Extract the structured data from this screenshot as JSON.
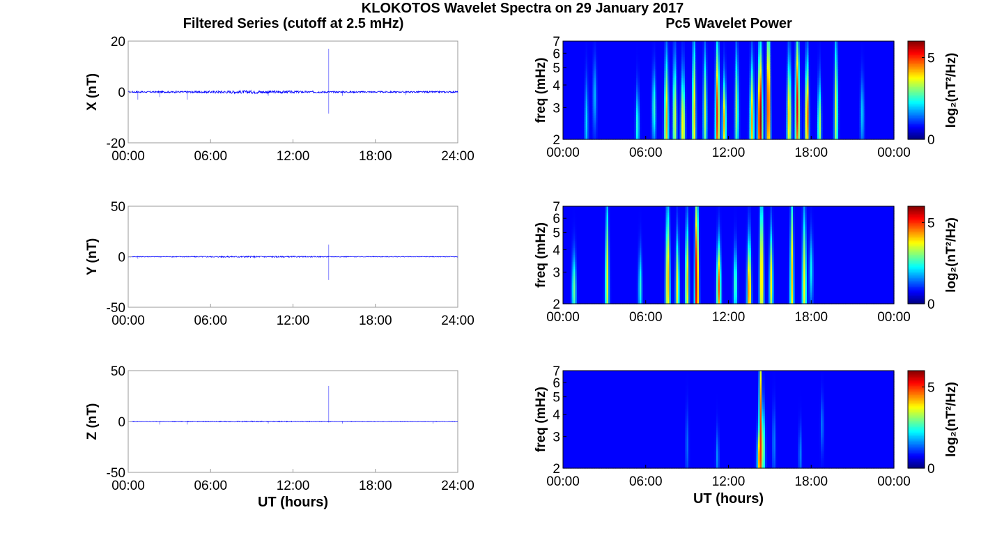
{
  "figure": {
    "title": "KLOKOTOS Wavelet Spectra on 29 January 2017",
    "left_column_title": "Filtered Series (cutoff at 2.5 mHz)",
    "right_column_title": "Pc5 Wavelet Power"
  },
  "chart_data": [
    {
      "type": "line",
      "panel": "X",
      "ylabel": "X (nT)",
      "xlabel": "",
      "ylim": [
        -20,
        20
      ],
      "yticks": [
        "20",
        "0",
        "-20"
      ],
      "xticks": [
        "00:00",
        "06:00",
        "12:00",
        "18:00",
        "24:00"
      ],
      "xlim_hours": [
        0,
        24
      ],
      "line_color": "#0000ff",
      "spikes": [
        {
          "t": 0.7,
          "lo": -3,
          "hi": 0.5
        },
        {
          "t": 2.3,
          "lo": -2,
          "hi": 0.5
        },
        {
          "t": 4.3,
          "lo": -3,
          "hi": 0.5
        },
        {
          "t": 10.2,
          "lo": -1.5,
          "hi": 0.5
        },
        {
          "t": 14.6,
          "lo": -8.5,
          "hi": 17
        },
        {
          "t": 15.6,
          "lo": -1.5,
          "hi": 0.5
        },
        {
          "t": 20.2,
          "lo": -1.2,
          "hi": 0.5
        }
      ],
      "noise_amp": 0.6
    },
    {
      "type": "line",
      "panel": "Y",
      "ylabel": "Y (nT)",
      "xlabel": "",
      "ylim": [
        -50,
        50
      ],
      "yticks": [
        "50",
        "0",
        "-50"
      ],
      "xticks": [
        "00:00",
        "06:00",
        "12:00",
        "18:00",
        "24:00"
      ],
      "xlim_hours": [
        0,
        24
      ],
      "line_color": "#0000ff",
      "spikes": [
        {
          "t": 0.7,
          "lo": -2,
          "hi": 1
        },
        {
          "t": 14.6,
          "lo": -23,
          "hi": 12
        }
      ],
      "noise_amp": 0.7
    },
    {
      "type": "line",
      "panel": "Z",
      "ylabel": "Z (nT)",
      "xlabel": "UT (hours)",
      "ylim": [
        -50,
        50
      ],
      "yticks": [
        "50",
        "0",
        "-50"
      ],
      "xticks": [
        "00:00",
        "06:00",
        "12:00",
        "18:00",
        "24:00"
      ],
      "xlim_hours": [
        0,
        24
      ],
      "line_color": "#0000ff",
      "spikes": [
        {
          "t": 2.3,
          "lo": -3,
          "hi": 0.5
        },
        {
          "t": 4.3,
          "lo": -3,
          "hi": 0.5
        },
        {
          "t": 10.2,
          "lo": -2,
          "hi": 0.5
        },
        {
          "t": 14.6,
          "lo": -1,
          "hi": 35
        },
        {
          "t": 15.6,
          "lo": -2,
          "hi": 0.5
        },
        {
          "t": 22.2,
          "lo": -2,
          "hi": 0.5
        }
      ],
      "noise_amp": 0.5
    },
    {
      "type": "heatmap",
      "panel": "X wavelet",
      "ylabel": "freq (mHz)",
      "xlabel": "",
      "yticks": [
        "7",
        "6",
        "5",
        "4",
        "3",
        "2"
      ],
      "ylim_mhz": [
        2,
        7
      ],
      "xticks": [
        "00:00",
        "06:00",
        "12:00",
        "18:00",
        "00:00"
      ],
      "xlim_hours": [
        0,
        24
      ],
      "colorbar": {
        "label": "log₂(nT²/Hz)",
        "ticks": [
          "5",
          "0"
        ],
        "range": [
          0,
          6
        ]
      },
      "blobs": [
        {
          "t": 1.7,
          "f": 2.5,
          "p": 1.5,
          "ext": 0.6,
          "w": 0.12
        },
        {
          "t": 2.3,
          "f": 3.5,
          "p": 1.3,
          "ext": 0.5,
          "w": 0.12
        },
        {
          "t": 5.4,
          "f": 2.4,
          "p": 2.0,
          "ext": 0.5,
          "w": 0.12
        },
        {
          "t": 6.6,
          "f": 3.0,
          "p": 2.2,
          "ext": 0.5,
          "w": 0.12
        },
        {
          "t": 7.5,
          "f": 2.5,
          "p": 4.0,
          "ext": 0.9,
          "w": 0.14
        },
        {
          "t": 8.1,
          "f": 2.7,
          "p": 3.5,
          "ext": 0.8,
          "w": 0.12
        },
        {
          "t": 8.7,
          "f": 2.4,
          "p": 3.8,
          "ext": 0.7,
          "w": 0.14
        },
        {
          "t": 9.5,
          "f": 2.8,
          "p": 4.0,
          "ext": 1.0,
          "w": 0.12
        },
        {
          "t": 10.3,
          "f": 2.9,
          "p": 3.0,
          "ext": 0.8,
          "w": 0.12
        },
        {
          "t": 11.2,
          "f": 2.7,
          "p": 5.0,
          "ext": 1.0,
          "w": 0.14
        },
        {
          "t": 11.7,
          "f": 2.5,
          "p": 4.0,
          "ext": 0.6,
          "w": 0.12
        },
        {
          "t": 12.6,
          "f": 3.0,
          "p": 3.0,
          "ext": 0.8,
          "w": 0.12
        },
        {
          "t": 13.7,
          "f": 2.5,
          "p": 4.0,
          "ext": 0.8,
          "w": 0.14
        },
        {
          "t": 14.3,
          "f": 2.6,
          "p": 6.0,
          "ext": 1.0,
          "w": 0.16
        },
        {
          "t": 14.9,
          "f": 3.2,
          "p": 5.6,
          "ext": 1.2,
          "w": 0.12
        },
        {
          "t": 16.4,
          "f": 2.7,
          "p": 4.0,
          "ext": 0.8,
          "w": 0.14
        },
        {
          "t": 17.0,
          "f": 3.0,
          "p": 5.2,
          "ext": 1.0,
          "w": 0.14
        },
        {
          "t": 17.7,
          "f": 2.7,
          "p": 5.0,
          "ext": 0.8,
          "w": 0.12
        },
        {
          "t": 18.6,
          "f": 2.4,
          "p": 3.0,
          "ext": 0.6,
          "w": 0.12
        },
        {
          "t": 19.8,
          "f": 3.0,
          "p": 3.3,
          "ext": 1.0,
          "w": 0.12
        },
        {
          "t": 21.7,
          "f": 2.8,
          "p": 1.5,
          "ext": 0.5,
          "w": 0.12
        }
      ]
    },
    {
      "type": "heatmap",
      "panel": "Y wavelet",
      "ylabel": "freq (mHz)",
      "xlabel": "",
      "yticks": [
        "7",
        "6",
        "5",
        "4",
        "3",
        "2"
      ],
      "ylim_mhz": [
        2,
        7
      ],
      "xticks": [
        "00:00",
        "06:00",
        "12:00",
        "18:00",
        "00:00"
      ],
      "xlim_hours": [
        0,
        24
      ],
      "colorbar": {
        "label": "log₂(nT²/Hz)",
        "ticks": [
          "5",
          "0"
        ],
        "range": [
          0,
          6
        ]
      },
      "blobs": [
        {
          "t": 0.8,
          "f": 2.4,
          "p": 2.5,
          "ext": 0.5,
          "w": 0.14
        },
        {
          "t": 3.2,
          "f": 2.9,
          "p": 3.5,
          "ext": 1.0,
          "w": 0.12
        },
        {
          "t": 5.6,
          "f": 2.5,
          "p": 2.0,
          "ext": 0.5,
          "w": 0.12
        },
        {
          "t": 7.6,
          "f": 2.8,
          "p": 4.2,
          "ext": 1.0,
          "w": 0.14
        },
        {
          "t": 8.3,
          "f": 2.5,
          "p": 3.5,
          "ext": 0.7,
          "w": 0.12
        },
        {
          "t": 9.0,
          "f": 2.7,
          "p": 4.0,
          "ext": 0.8,
          "w": 0.12
        },
        {
          "t": 9.7,
          "f": 2.7,
          "p": 5.8,
          "ext": 1.3,
          "w": 0.13
        },
        {
          "t": 11.3,
          "f": 2.5,
          "p": 4.6,
          "ext": 0.6,
          "w": 0.14
        },
        {
          "t": 12.5,
          "f": 2.6,
          "p": 2.5,
          "ext": 0.5,
          "w": 0.12
        },
        {
          "t": 13.5,
          "f": 2.4,
          "p": 4.6,
          "ext": 0.7,
          "w": 0.14
        },
        {
          "t": 14.4,
          "f": 3.0,
          "p": 4.3,
          "ext": 1.1,
          "w": 0.13
        },
        {
          "t": 15.1,
          "f": 2.7,
          "p": 3.5,
          "ext": 0.7,
          "w": 0.12
        },
        {
          "t": 16.6,
          "f": 2.8,
          "p": 3.8,
          "ext": 1.2,
          "w": 0.12
        },
        {
          "t": 17.5,
          "f": 2.6,
          "p": 3.4,
          "ext": 1.0,
          "w": 0.14
        },
        {
          "t": 18.0,
          "f": 3.1,
          "p": 1.7,
          "ext": 0.5,
          "w": 0.12
        }
      ]
    },
    {
      "type": "heatmap",
      "panel": "Z wavelet",
      "ylabel": "freq (mHz)",
      "xlabel": "UT (hours)",
      "yticks": [
        "7",
        "6",
        "5",
        "4",
        "3",
        "2"
      ],
      "ylim_mhz": [
        2,
        7
      ],
      "xticks": [
        "00:00",
        "06:00",
        "12:00",
        "18:00",
        "00:00"
      ],
      "xlim_hours": [
        0,
        24
      ],
      "colorbar": {
        "label": "log₂(nT²/Hz)",
        "ticks": [
          "5",
          "0"
        ],
        "range": [
          0,
          6
        ]
      },
      "blobs": [
        {
          "t": 9.0,
          "f": 2.7,
          "p": 0.8,
          "ext": 0.5,
          "w": 0.1
        },
        {
          "t": 11.2,
          "f": 2.3,
          "p": 1.0,
          "ext": 0.4,
          "w": 0.1
        },
        {
          "t": 14.3,
          "f": 2.3,
          "p": 5.0,
          "ext": 0.5,
          "w": 0.18
        },
        {
          "t": 14.3,
          "f": 3.2,
          "p": 6.0,
          "ext": 1.6,
          "w": 0.08
        },
        {
          "t": 14.5,
          "f": 2.6,
          "p": 3.0,
          "ext": 0.6,
          "w": 0.14
        },
        {
          "t": 15.3,
          "f": 2.8,
          "p": 1.0,
          "ext": 0.5,
          "w": 0.1
        },
        {
          "t": 17.2,
          "f": 2.4,
          "p": 1.0,
          "ext": 0.4,
          "w": 0.1
        },
        {
          "t": 18.8,
          "f": 3.5,
          "p": 0.9,
          "ext": 0.4,
          "w": 0.1
        }
      ]
    }
  ]
}
